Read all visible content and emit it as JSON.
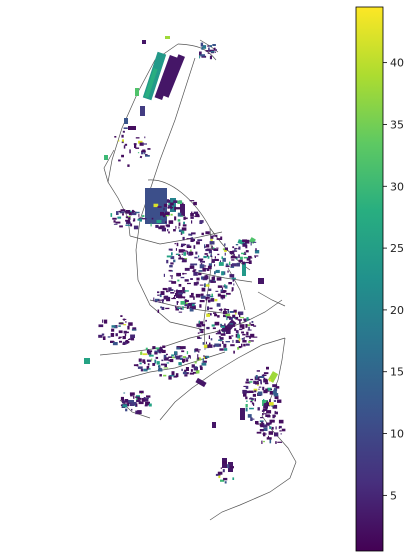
{
  "colormap": {
    "name": "viridis",
    "stops": [
      "#440154",
      "#472f7d",
      "#3b528b",
      "#2c728e",
      "#21918c",
      "#28ae80",
      "#5ec962",
      "#addc30",
      "#fde725"
    ],
    "min": 0.5,
    "max": 44.5,
    "ticks": [
      {
        "value": 5,
        "label": "5"
      },
      {
        "value": 10,
        "label": "10"
      },
      {
        "value": 15,
        "label": "15"
      },
      {
        "value": 20,
        "label": "20"
      },
      {
        "value": 25,
        "label": "25"
      },
      {
        "value": 30,
        "label": "30"
      },
      {
        "value": 35,
        "label": "35"
      },
      {
        "value": 40,
        "label": "40"
      }
    ]
  },
  "map": {
    "road_color": "#555555",
    "background": "#ffffff"
  }
}
